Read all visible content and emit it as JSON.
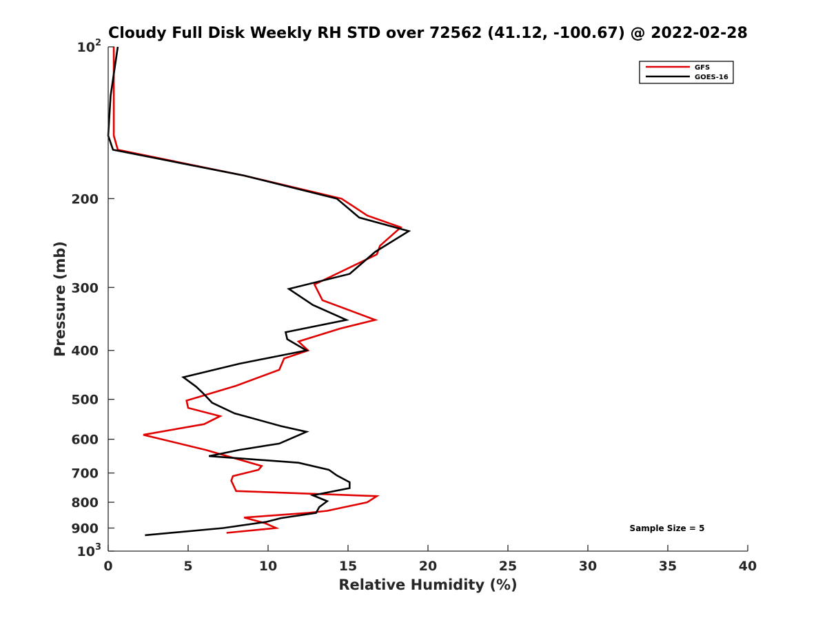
{
  "chart_data": {
    "type": "line",
    "title": "Cloudy Full Disk Weekly RH STD over 72562 (41.12, -100.67) @ 2022-02-28",
    "xlabel": "Relative Humidity (%)",
    "ylabel": "Pressure (mb)",
    "xlim": [
      0,
      40
    ],
    "ylim": [
      100,
      1000
    ],
    "y_scale": "log",
    "y_reversed": true,
    "grid": false,
    "x_ticks": [
      0,
      5,
      10,
      15,
      20,
      25,
      30,
      35,
      40
    ],
    "x_tick_labels": [
      "0",
      "5",
      "10",
      "15",
      "20",
      "25",
      "30",
      "35",
      "40"
    ],
    "y_ticks": [
      100,
      200,
      300,
      400,
      500,
      600,
      700,
      800,
      900,
      1000
    ],
    "y_tick_labels": [
      {
        "base": "10",
        "sup": "2"
      },
      {
        "base": "200",
        "sup": ""
      },
      {
        "base": "300",
        "sup": ""
      },
      {
        "base": "400",
        "sup": ""
      },
      {
        "base": "500",
        "sup": ""
      },
      {
        "base": "600",
        "sup": ""
      },
      {
        "base": "700",
        "sup": ""
      },
      {
        "base": "800",
        "sup": ""
      },
      {
        "base": "900",
        "sup": ""
      },
      {
        "base": "10",
        "sup": "3"
      }
    ],
    "legend_position": "top-right",
    "annotation": "Sample Size = 5",
    "series": [
      {
        "name": "GFS",
        "color": "#e00000",
        "points": [
          [
            0.35,
            100
          ],
          [
            0.35,
            125
          ],
          [
            0.35,
            150
          ],
          [
            0.6,
            160
          ],
          [
            8.5,
            180
          ],
          [
            14.6,
            200
          ],
          [
            16.2,
            216
          ],
          [
            18.3,
            228
          ],
          [
            17.0,
            248
          ],
          [
            16.8,
            258
          ],
          [
            12.9,
            296
          ],
          [
            13.4,
            318
          ],
          [
            16.7,
            348
          ],
          [
            14.5,
            362
          ],
          [
            11.9,
            384
          ],
          [
            12.5,
            400
          ],
          [
            11.0,
            415
          ],
          [
            10.7,
            437
          ],
          [
            8.0,
            470
          ],
          [
            4.9,
            503
          ],
          [
            5.0,
            520
          ],
          [
            7.0,
            540
          ],
          [
            6.0,
            560
          ],
          [
            2.2,
            588
          ],
          [
            6.1,
            630
          ],
          [
            9.6,
            678
          ],
          [
            9.4,
            690
          ],
          [
            7.8,
            710
          ],
          [
            7.7,
            725
          ],
          [
            8.0,
            760
          ],
          [
            16.8,
            778
          ],
          [
            16.2,
            800
          ],
          [
            13.7,
            832
          ],
          [
            12.5,
            840
          ],
          [
            8.5,
            858
          ],
          [
            9.8,
            880
          ],
          [
            10.5,
            900
          ],
          [
            7.4,
            920
          ]
        ]
      },
      {
        "name": "GOES-16",
        "color": "#000000",
        "points": [
          [
            0.6,
            100
          ],
          [
            0.15,
            125
          ],
          [
            0.0,
            150
          ],
          [
            0.3,
            160
          ],
          [
            8.5,
            180
          ],
          [
            14.3,
            200
          ],
          [
            15.7,
            218
          ],
          [
            18.8,
            232
          ],
          [
            16.7,
            255
          ],
          [
            15.1,
            282
          ],
          [
            11.3,
            302
          ],
          [
            12.8,
            325
          ],
          [
            14.9,
            348
          ],
          [
            11.1,
            368
          ],
          [
            11.2,
            380
          ],
          [
            12.4,
            400
          ],
          [
            8.2,
            425
          ],
          [
            4.7,
            452
          ],
          [
            5.5,
            472
          ],
          [
            5.9,
            485
          ],
          [
            6.5,
            508
          ],
          [
            7.9,
            533
          ],
          [
            10.8,
            565
          ],
          [
            12.4,
            580
          ],
          [
            10.7,
            612
          ],
          [
            8.2,
            630
          ],
          [
            6.3,
            648
          ],
          [
            11.9,
            668
          ],
          [
            13.8,
            690
          ],
          [
            14.3,
            708
          ],
          [
            15.1,
            730
          ],
          [
            15.1,
            750
          ],
          [
            12.8,
            775
          ],
          [
            13.7,
            796
          ],
          [
            13.2,
            818
          ],
          [
            13.0,
            840
          ],
          [
            10.8,
            860
          ],
          [
            9.9,
            875
          ],
          [
            7.2,
            900
          ],
          [
            2.3,
            930
          ]
        ]
      }
    ]
  }
}
